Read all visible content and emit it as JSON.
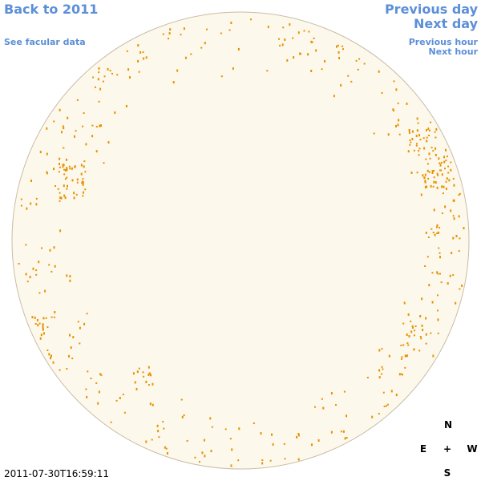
{
  "navigation": {
    "back": "Back to 2011",
    "facular": "See facular data",
    "previous_day": "Previous day",
    "next_day": "Next day",
    "previous_hour": "Previous hour",
    "next_hour": "Next hour"
  },
  "timestamp": "2011-07-30T16:59:11",
  "compass": {
    "north": "N",
    "east": "E",
    "center": "+",
    "west": "W",
    "south": "S"
  }
}
